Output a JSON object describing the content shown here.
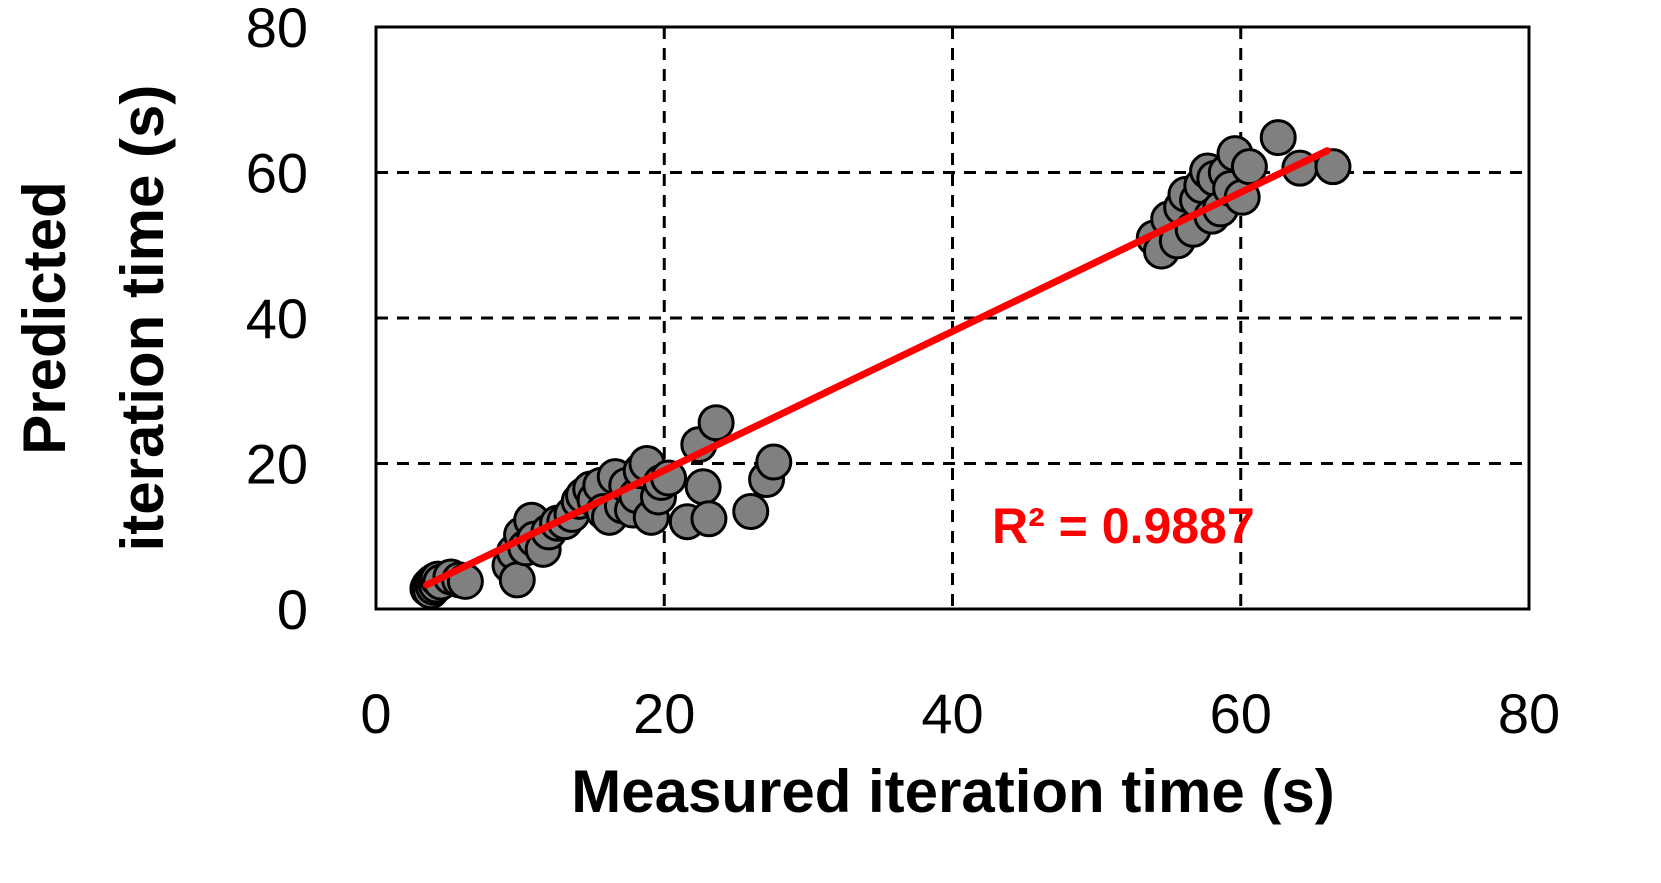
{
  "chart_data": {
    "type": "scatter",
    "xlabel": "Measured iteration time (s)",
    "ylabel_lines": [
      "Predicted",
      "iteration time (s)"
    ],
    "xlim": [
      0,
      80
    ],
    "ylim": [
      0,
      80
    ],
    "xticks": [
      0,
      20,
      40,
      60,
      80
    ],
    "yticks": [
      0,
      20,
      40,
      60,
      80
    ],
    "xtick_labels": [
      "0",
      "20",
      "40",
      "60",
      "80"
    ],
    "ytick_labels": [
      "0",
      "20",
      "40",
      "60",
      "80"
    ],
    "grid": true,
    "series": [
      {
        "name": "points",
        "color": "#808080",
        "points": [
          [
            3.6,
            2.8
          ],
          [
            3.7,
            3.2
          ],
          [
            3.8,
            2.5
          ],
          [
            3.9,
            3.6
          ],
          [
            4.0,
            3.0
          ],
          [
            4.1,
            3.9
          ],
          [
            4.2,
            3.3
          ],
          [
            4.3,
            4.1
          ],
          [
            4.5,
            3.7
          ],
          [
            5.2,
            4.4
          ],
          [
            5.8,
            4.0
          ],
          [
            6.2,
            3.8
          ],
          [
            9.3,
            6.0
          ],
          [
            9.6,
            7.8
          ],
          [
            9.8,
            4.0
          ],
          [
            10.1,
            10.2
          ],
          [
            10.4,
            8.4
          ],
          [
            10.8,
            12.2
          ],
          [
            11.0,
            9.6
          ],
          [
            11.6,
            8.2
          ],
          [
            12.0,
            10.6
          ],
          [
            12.6,
            11.8
          ],
          [
            13.1,
            12.0
          ],
          [
            13.6,
            13.0
          ],
          [
            14.1,
            14.8
          ],
          [
            14.4,
            15.6
          ],
          [
            14.9,
            16.5
          ],
          [
            15.2,
            15.0
          ],
          [
            15.6,
            17.0
          ],
          [
            15.8,
            13.4
          ],
          [
            16.2,
            12.6
          ],
          [
            16.6,
            18.2
          ],
          [
            17.1,
            14.2
          ],
          [
            17.4,
            17.0
          ],
          [
            17.8,
            13.6
          ],
          [
            18.1,
            15.6
          ],
          [
            18.4,
            19.0
          ],
          [
            18.8,
            20.0
          ],
          [
            19.1,
            12.6
          ],
          [
            19.6,
            15.4
          ],
          [
            19.8,
            17.4
          ],
          [
            20.3,
            18.0
          ],
          [
            21.6,
            12.0
          ],
          [
            22.4,
            22.6
          ],
          [
            22.7,
            16.8
          ],
          [
            23.1,
            12.4
          ],
          [
            23.6,
            25.6
          ],
          [
            26.0,
            13.4
          ],
          [
            27.1,
            17.8
          ],
          [
            27.6,
            20.2
          ],
          [
            54.0,
            51.0
          ],
          [
            54.5,
            49.2
          ],
          [
            55.0,
            53.6
          ],
          [
            55.6,
            50.6
          ],
          [
            55.9,
            55.2
          ],
          [
            56.2,
            57.0
          ],
          [
            56.7,
            52.2
          ],
          [
            57.0,
            56.2
          ],
          [
            57.3,
            58.2
          ],
          [
            57.7,
            60.2
          ],
          [
            58.0,
            54.0
          ],
          [
            58.2,
            59.2
          ],
          [
            58.6,
            55.0
          ],
          [
            59.0,
            60.0
          ],
          [
            59.3,
            57.8
          ],
          [
            59.6,
            62.6
          ],
          [
            60.1,
            56.6
          ],
          [
            60.6,
            60.8
          ],
          [
            62.6,
            64.8
          ],
          [
            64.1,
            60.6
          ],
          [
            66.4,
            60.8
          ]
        ]
      }
    ],
    "trendline": {
      "type": "linear",
      "color": "#ff0000",
      "x": [
        3.5,
        66.0
      ],
      "y": [
        3.3,
        63.0
      ]
    },
    "annotation": {
      "text": "R² = 0.9887",
      "color": "#ff0000"
    }
  }
}
